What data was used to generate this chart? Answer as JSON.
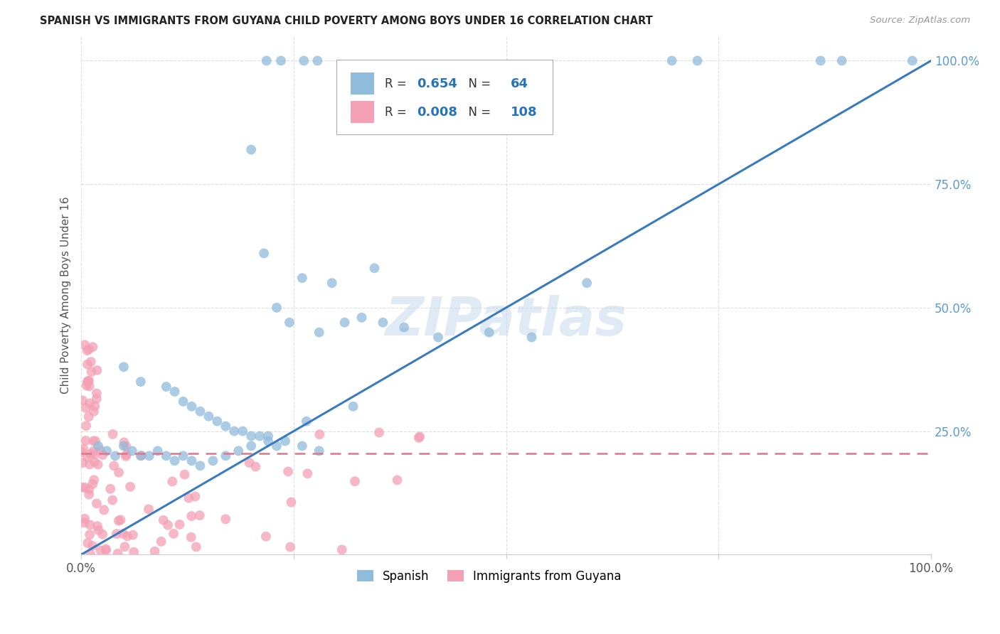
{
  "title": "SPANISH VS IMMIGRANTS FROM GUYANA CHILD POVERTY AMONG BOYS UNDER 16 CORRELATION CHART",
  "source": "Source: ZipAtlas.com",
  "ylabel": "Child Poverty Among Boys Under 16",
  "watermark": "ZIPatlas",
  "legend_label1": "Spanish",
  "legend_label2": "Immigrants from Guyana",
  "R1": 0.654,
  "N1": 64,
  "R2": 0.008,
  "N2": 108,
  "color_spanish": "#8fbcdb",
  "color_guyana": "#f4a0b5",
  "color_line_spanish": "#3a7abf",
  "color_line_guyana": "#e0748a",
  "line_slope": 1.0,
  "line_intercept": 0.0,
  "flat_line_y": 0.205,
  "xlim": [
    0,
    1
  ],
  "ylim": [
    0,
    1.05
  ],
  "xticks": [
    0,
    0.25,
    0.5,
    0.75,
    1.0
  ],
  "yticks": [
    0,
    0.25,
    0.5,
    0.75,
    1.0
  ],
  "xticklabels": [
    "0.0%",
    "",
    "",
    "",
    "100.0%"
  ],
  "yticklabels": [
    "",
    "25.0%",
    "50.0%",
    "75.0%",
    "100.0%"
  ]
}
